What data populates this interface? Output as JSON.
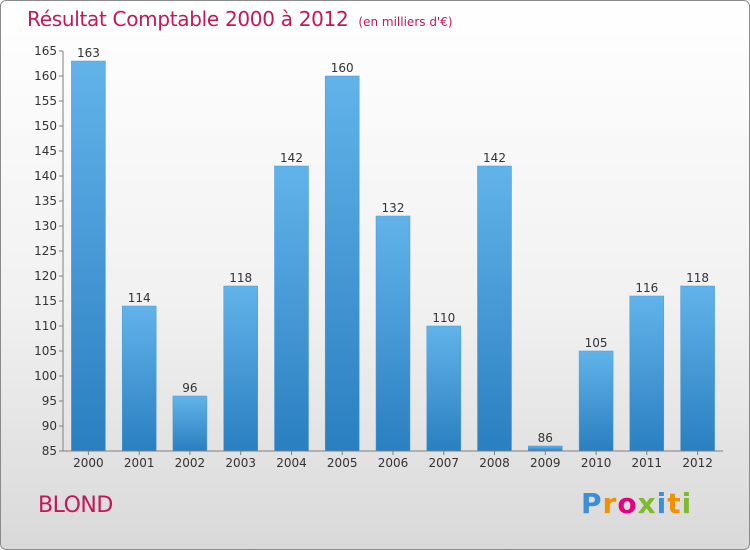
{
  "chart_data": {
    "type": "bar",
    "title": "Résultat Comptable 2000 à 2012",
    "subtitle": "(en milliers d'€)",
    "categories": [
      "2000",
      "2001",
      "2002",
      "2003",
      "2004",
      "2005",
      "2006",
      "2007",
      "2008",
      "2009",
      "2010",
      "2011",
      "2012"
    ],
    "values": [
      163,
      114,
      96,
      118,
      142,
      160,
      132,
      110,
      142,
      86,
      105,
      116,
      118
    ],
    "ylim": [
      85,
      165
    ],
    "yticks": [
      85,
      90,
      95,
      100,
      105,
      110,
      115,
      120,
      125,
      130,
      135,
      140,
      145,
      150,
      155,
      160,
      165
    ],
    "xlabel": "",
    "ylabel": "",
    "grid": false,
    "legend": "none",
    "bar_color_top": "#62b3ea",
    "bar_color_bottom": "#2a7fc0"
  },
  "commune": "BLOND",
  "brand": {
    "letters": [
      "P",
      "r",
      "o",
      "x",
      "i",
      "t",
      "i"
    ],
    "colors": [
      "#3a8fd6",
      "#f29100",
      "#e5007e",
      "#7dbb2c",
      "#3a8fd6",
      "#f29100",
      "#7dbb2c"
    ]
  },
  "colors": {
    "title": "#c2185b",
    "axis": "#7f7f7f"
  }
}
